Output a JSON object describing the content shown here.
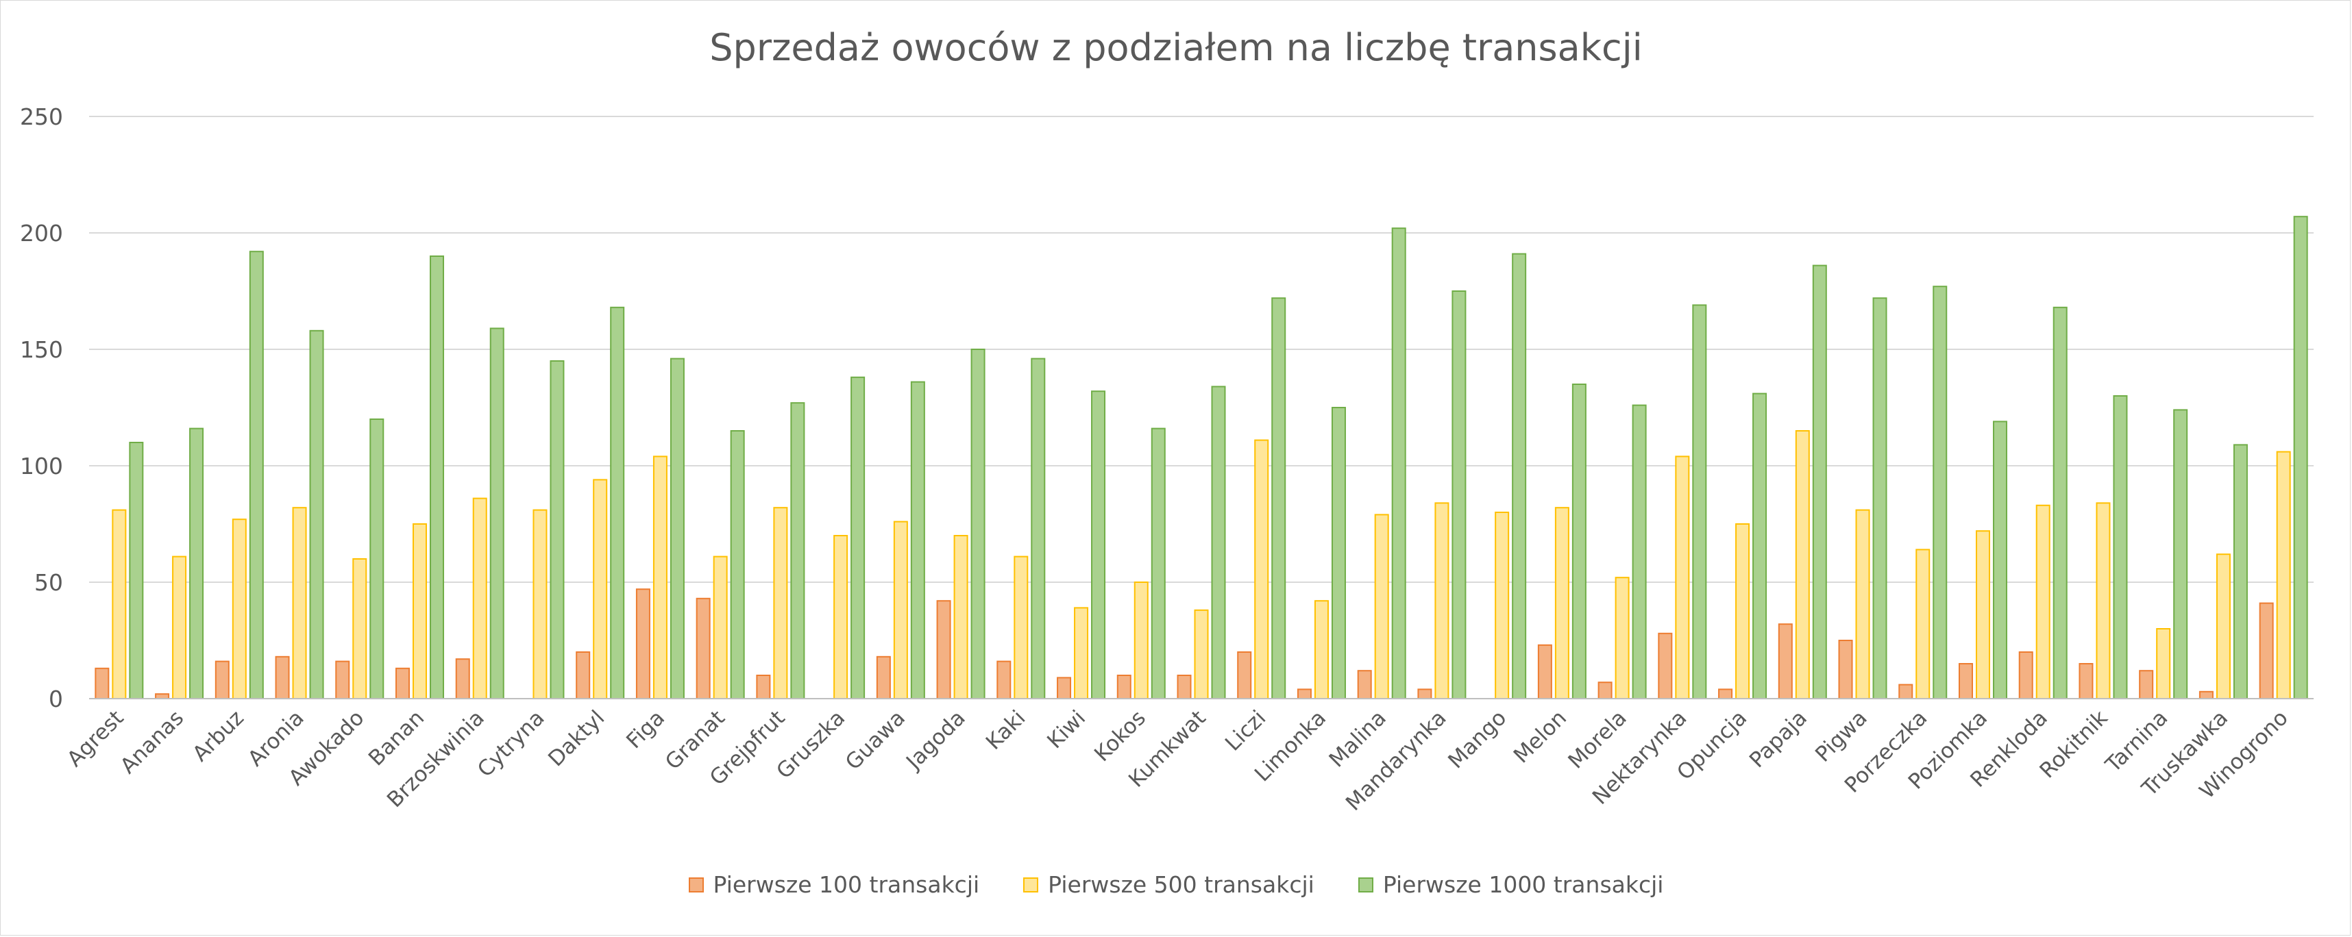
{
  "chart_data": {
    "type": "bar",
    "title": "Sprzedaż owoców z podziałem na liczbę transakcji",
    "xlabel": "",
    "ylabel": "",
    "ylim": [
      0,
      250
    ],
    "yticks": [
      0,
      50,
      100,
      150,
      200,
      250
    ],
    "grid": true,
    "legend_position": "bottom",
    "categories": [
      "Agrest",
      "Ananas",
      "Arbuz",
      "Aronia",
      "Awokado",
      "Banan",
      "Brzoskwinia",
      "Cytryna",
      "Daktyl",
      "Figa",
      "Granat",
      "Grejpfrut",
      "Gruszka",
      "Guawa",
      "Jagoda",
      "Kaki",
      "Kiwi",
      "Kokos",
      "Kumkwat",
      "Liczi",
      "Limonka",
      "Malina",
      "Mandarynka",
      "Mango",
      "Melon",
      "Morela",
      "Nektarynka",
      "Opuncja",
      "Papaja",
      "Pigwa",
      "Porzeczka",
      "Poziomka",
      "Renkloda",
      "Rokitnik",
      "Tarnina",
      "Truskawka",
      "Winogrono"
    ],
    "series": [
      {
        "name": "Pierwsze 100 transakcji",
        "fill": "#F4B183",
        "stroke": "#ED7D31",
        "values": [
          13,
          2,
          16,
          18,
          16,
          13,
          17,
          0,
          20,
          47,
          43,
          10,
          0,
          18,
          42,
          16,
          9,
          10,
          10,
          20,
          4,
          12,
          4,
          0,
          23,
          7,
          28,
          4,
          32,
          25,
          6,
          15,
          20,
          15,
          12,
          3,
          41
        ]
      },
      {
        "name": "Pierwsze 500 transakcji",
        "fill": "#FFE699",
        "stroke": "#FFC000",
        "values": [
          81,
          61,
          77,
          82,
          60,
          75,
          86,
          81,
          94,
          104,
          61,
          82,
          70,
          76,
          70,
          61,
          39,
          50,
          38,
          111,
          42,
          79,
          84,
          80,
          82,
          52,
          104,
          75,
          115,
          81,
          64,
          72,
          83,
          84,
          30,
          62,
          106
        ]
      },
      {
        "name": "Pierwsze 1000 transakcji",
        "fill": "#A9D18E",
        "stroke": "#70AD47",
        "values": [
          110,
          116,
          192,
          158,
          120,
          190,
          159,
          145,
          168,
          146,
          115,
          127,
          138,
          136,
          150,
          146,
          132,
          116,
          134,
          172,
          125,
          202,
          175,
          191,
          135,
          126,
          169,
          131,
          186,
          172,
          177,
          119,
          168,
          130,
          124,
          109,
          207
        ]
      }
    ]
  }
}
